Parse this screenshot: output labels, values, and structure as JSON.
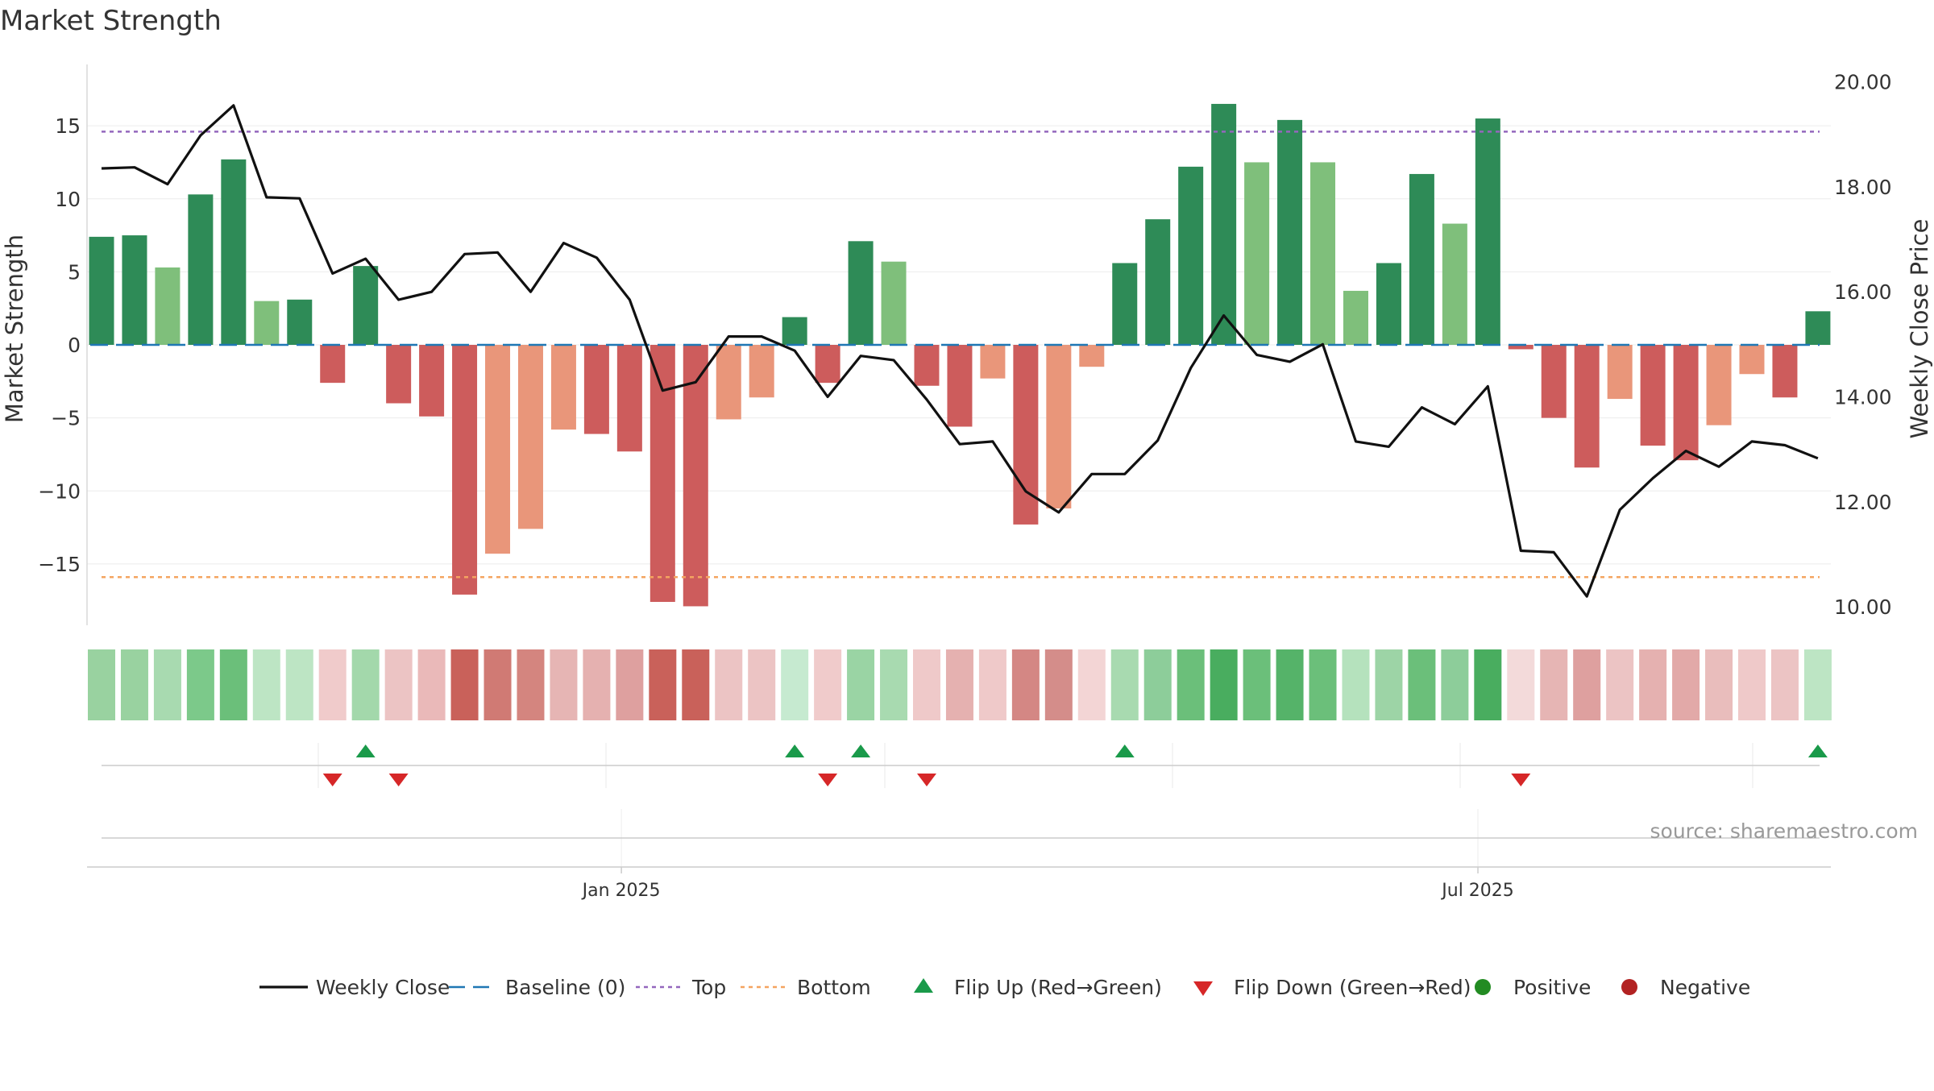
{
  "chart_data": {
    "type": "bar",
    "title": "Market Strength",
    "ylabel": "Market Strength",
    "y2label": "Weekly Close Price",
    "ylim": [
      -19.2,
      19.2
    ],
    "y2lim": [
      9.65,
      20.33
    ],
    "yticks": [
      15,
      10,
      5,
      0,
      -5,
      -10,
      -15
    ],
    "ytick_labels": [
      "15",
      "10",
      "5",
      "0",
      "−5",
      "−10",
      "−15"
    ],
    "y2ticks": [
      20,
      18,
      16,
      14,
      12,
      10
    ],
    "y2tick_labels": [
      "20.00",
      "18.00",
      "16.00",
      "14.00",
      "12.00",
      "10.00"
    ],
    "xticks": [
      {
        "label": "Jan 2025",
        "index": 15.75
      },
      {
        "label": "Jul 2025",
        "index": 41.7
      }
    ],
    "reference_lines": {
      "baseline": 0,
      "top": 14.6,
      "bottom": -15.9
    },
    "strength": [
      7.4,
      7.5,
      5.3,
      10.3,
      12.7,
      3.0,
      3.1,
      -2.6,
      5.4,
      -4.0,
      -4.9,
      -17.1,
      -14.3,
      -12.6,
      -5.8,
      -6.1,
      -7.3,
      -17.6,
      -17.9,
      -5.1,
      -3.6,
      1.9,
      -2.6,
      7.1,
      5.7,
      -2.8,
      -5.6,
      -2.3,
      -12.3,
      -11.2,
      -1.5,
      5.6,
      8.6,
      12.2,
      16.5,
      12.5,
      15.4,
      12.5,
      3.7,
      5.6,
      11.7,
      8.3,
      15.5,
      -0.3,
      -5.0,
      -8.4,
      -3.7,
      -6.9,
      -7.9,
      -5.5,
      -2.0,
      -3.6,
      2.3
    ],
    "bar_colors": [
      "#2e8b57",
      "#2e8b57",
      "#7fbf7b",
      "#2e8b57",
      "#2e8b57",
      "#7fbf7b",
      "#2e8b57",
      "#cd5c5c",
      "#2e8b57",
      "#cd5c5c",
      "#cd5c5c",
      "#cd5c5c",
      "#e9967a",
      "#e9967a",
      "#e9967a",
      "#cd5c5c",
      "#cd5c5c",
      "#cd5c5c",
      "#cd5c5c",
      "#e9967a",
      "#e9967a",
      "#2e8b57",
      "#cd5c5c",
      "#2e8b57",
      "#7fbf7b",
      "#cd5c5c",
      "#cd5c5c",
      "#e9967a",
      "#cd5c5c",
      "#e9967a",
      "#e9967a",
      "#2e8b57",
      "#2e8b57",
      "#2e8b57",
      "#2e8b57",
      "#7fbf7b",
      "#2e8b57",
      "#7fbf7b",
      "#7fbf7b",
      "#2e8b57",
      "#2e8b57",
      "#7fbf7b",
      "#2e8b57",
      "#cd5c5c",
      "#cd5c5c",
      "#cd5c5c",
      "#e9967a",
      "#cd5c5c",
      "#cd5c5c",
      "#e9967a",
      "#e9967a",
      "#cd5c5c",
      "#2e8b57"
    ],
    "weekly_close": [
      18.35,
      18.37,
      18.05,
      18.98,
      19.55,
      17.8,
      17.78,
      16.35,
      16.63,
      15.85,
      16.0,
      16.72,
      16.75,
      16.0,
      16.93,
      16.65,
      15.85,
      14.12,
      14.28,
      15.15,
      15.15,
      14.88,
      14.0,
      14.78,
      14.7,
      13.95,
      13.1,
      13.15,
      12.2,
      11.8,
      12.53,
      12.53,
      13.17,
      14.55,
      15.55,
      14.8,
      14.67,
      15.0,
      13.15,
      13.05,
      13.8,
      13.48,
      14.2,
      11.07,
      11.04,
      10.2,
      11.85,
      12.45,
      12.97,
      12.67,
      13.15,
      13.08,
      12.83
    ],
    "heatmap_colors": [
      "#99d2a0",
      "#99d2a0",
      "#a8dab0",
      "#7cc98a",
      "#6bbf7a",
      "#bde5c4",
      "#bde5c4",
      "#f0cbcb",
      "#a3d8ab",
      "#ecc4c4",
      "#eab9b9",
      "#c9615a",
      "#d07a74",
      "#d4857f",
      "#e6b5b4",
      "#e5b1b0",
      "#dea09f",
      "#c9615a",
      "#c9615a",
      "#ecc4c4",
      "#ecc4c4",
      "#c6ead0",
      "#f0cbcb",
      "#9ad4a4",
      "#a8dab0",
      "#efc9c9",
      "#e5b1b0",
      "#efc9c9",
      "#d48784",
      "#d48d8a",
      "#f3d5d5",
      "#a8dab0",
      "#8dcd9a",
      "#6bbf7a",
      "#49ad5f",
      "#6bbf7a",
      "#55b369",
      "#6bbf7a",
      "#b5e2bd",
      "#9dd4a6",
      "#6bbf7a",
      "#8dcd9a",
      "#49ad5f",
      "#f3dada",
      "#e6b5b4",
      "#dea09f",
      "#ecc4c4",
      "#e5b1b0",
      "#e2a9a8",
      "#e9bdbc",
      "#efc9c9",
      "#ecc4c4",
      "#bde5c4"
    ],
    "flip_up": [
      8,
      21,
      23,
      31,
      52
    ],
    "flip_down": [
      7,
      9,
      22,
      25,
      43
    ],
    "source_text": "source: sharemaestro.com",
    "legend": [
      {
        "label": "Weekly Close",
        "kind": "line",
        "color": "#111111"
      },
      {
        "label": "Baseline (0)",
        "kind": "dash",
        "color": "#1f77b4"
      },
      {
        "label": "Top",
        "kind": "dot",
        "color": "#9467bd"
      },
      {
        "label": "Bottom",
        "kind": "dot",
        "color": "#f4a460"
      },
      {
        "label": "Flip Up (Red→Green)",
        "kind": "tri-up",
        "color": "#1a9a4a"
      },
      {
        "label": "Flip Down (Green→Red)",
        "kind": "tri-down",
        "color": "#d62728"
      },
      {
        "label": "Positive",
        "kind": "circle",
        "color": "#228b22"
      },
      {
        "label": "Negative",
        "kind": "circle",
        "color": "#b22222"
      }
    ],
    "legend_placement": "bottom-center"
  }
}
